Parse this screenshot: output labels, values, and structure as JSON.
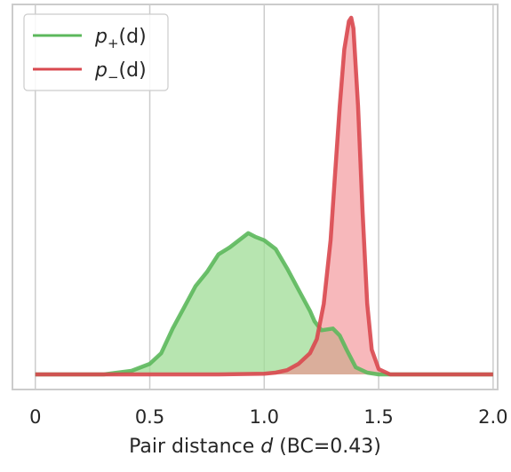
{
  "chart_data": {
    "type": "area",
    "xlabel": "Pair distance d (BC=0.43)",
    "xlim": [
      -0.1,
      2.02
    ],
    "ylim": [
      0,
      1
    ],
    "xticks": [
      {
        "value": 0,
        "label": "0"
      },
      {
        "value": 0.5,
        "label": "0.5"
      },
      {
        "value": 1.0,
        "label": "1.0"
      },
      {
        "value": 1.5,
        "label": "1.5"
      },
      {
        "value": 2.0,
        "label": "2.0"
      }
    ],
    "yticks_visible": false,
    "grid": "vertical",
    "legend": {
      "placement": "top-left",
      "entries": [
        {
          "series": "p_plus",
          "base": "p",
          "sub": "+",
          "arg": "(d)"
        },
        {
          "series": "p_minus",
          "base": "p",
          "sub": "−",
          "arg": "(d)"
        }
      ]
    },
    "series": [
      {
        "key": "p_plus",
        "name": "p+(d)",
        "color": "#5cb85c",
        "fill": "#9fdc95",
        "x": [
          0,
          0.3,
          0.42,
          0.5,
          0.55,
          0.6,
          0.65,
          0.7,
          0.75,
          0.8,
          0.85,
          0.9,
          0.93,
          0.96,
          1.0,
          1.05,
          1.1,
          1.15,
          1.2,
          1.22,
          1.25,
          1.3,
          1.33,
          1.36,
          1.4,
          1.45,
          1.5,
          1.6,
          1.8,
          2.0
        ],
        "y": [
          0.0,
          0.0,
          0.01,
          0.03,
          0.06,
          0.13,
          0.19,
          0.25,
          0.29,
          0.34,
          0.36,
          0.385,
          0.4,
          0.39,
          0.38,
          0.355,
          0.3,
          0.24,
          0.18,
          0.15,
          0.125,
          0.13,
          0.11,
          0.07,
          0.02,
          0.005,
          0.0,
          0.0,
          0.0,
          0.0
        ]
      },
      {
        "key": "p_minus",
        "name": "p−(d)",
        "color": "#d9484f",
        "fill": "#f2898e",
        "x": [
          0,
          0.8,
          1.0,
          1.05,
          1.1,
          1.15,
          1.2,
          1.23,
          1.26,
          1.29,
          1.31,
          1.33,
          1.35,
          1.37,
          1.38,
          1.39,
          1.41,
          1.43,
          1.45,
          1.47,
          1.5,
          1.55,
          1.7,
          2.0
        ],
        "y": [
          0.0,
          0.0,
          0.002,
          0.005,
          0.012,
          0.03,
          0.06,
          0.1,
          0.2,
          0.38,
          0.57,
          0.76,
          0.92,
          1.0,
          1.01,
          0.98,
          0.76,
          0.46,
          0.2,
          0.07,
          0.015,
          0.0,
          0.0,
          0.0
        ]
      }
    ]
  }
}
